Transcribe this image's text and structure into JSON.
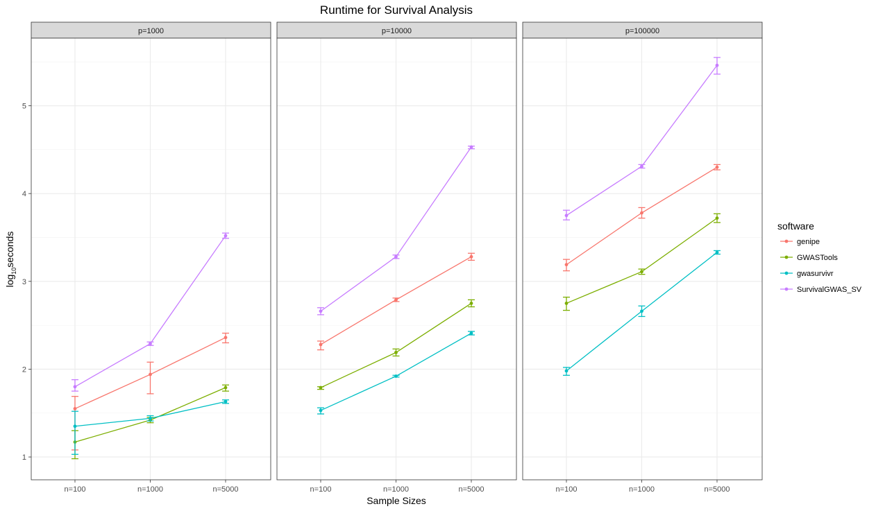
{
  "chart_data": {
    "type": "line",
    "title": "Runtime for Survival Analysis",
    "xlabel": "Sample Sizes",
    "ylabel_base": "log",
    "ylabel_sub": "10",
    "ylabel_rest": "seconds",
    "ylim": [
      0.74,
      5.77
    ],
    "yticks": [
      1,
      2,
      3,
      4,
      5
    ],
    "categories": [
      "n=100",
      "n=1000",
      "n=5000"
    ],
    "grid": true,
    "error_bars": true,
    "legend_position": "right",
    "legend_title": "software",
    "software": [
      {
        "name": "genipe",
        "color": "#F8766D"
      },
      {
        "name": "GWASTools",
        "color": "#7CAE00"
      },
      {
        "name": "gwasurvivr",
        "color": "#00BFC4"
      },
      {
        "name": "SurvivalGWAS_SV",
        "color": "#C77CFF"
      }
    ],
    "panels": [
      {
        "label": "p=1000",
        "series": [
          {
            "name": "genipe",
            "values": [
              1.55,
              1.94,
              2.36
            ],
            "lower": [
              1.08,
              1.72,
              2.3
            ],
            "upper": [
              1.69,
              2.08,
              2.41
            ]
          },
          {
            "name": "GWASTools",
            "values": [
              1.17,
              1.42,
              1.79
            ],
            "lower": [
              0.98,
              1.39,
              1.75
            ],
            "upper": [
              1.3,
              1.45,
              1.82
            ]
          },
          {
            "name": "gwasurvivr",
            "values": [
              1.35,
              1.44,
              1.63
            ],
            "lower": [
              1.03,
              1.41,
              1.61
            ],
            "upper": [
              1.52,
              1.47,
              1.65
            ]
          },
          {
            "name": "SurvivalGWAS_SV",
            "values": [
              1.8,
              2.29,
              3.52
            ],
            "lower": [
              1.75,
              2.27,
              3.49
            ],
            "upper": [
              1.88,
              2.31,
              3.55
            ]
          }
        ]
      },
      {
        "label": "p=10000",
        "series": [
          {
            "name": "genipe",
            "values": [
              2.28,
              2.79,
              3.28
            ],
            "lower": [
              2.22,
              2.77,
              3.24
            ],
            "upper": [
              2.32,
              2.81,
              3.32
            ]
          },
          {
            "name": "GWASTools",
            "values": [
              1.79,
              2.19,
              2.75
            ],
            "lower": [
              1.77,
              2.15,
              2.71
            ],
            "upper": [
              1.8,
              2.23,
              2.79
            ]
          },
          {
            "name": "gwasurvivr",
            "values": [
              1.53,
              1.92,
              2.41
            ],
            "lower": [
              1.49,
              1.91,
              2.39
            ],
            "upper": [
              1.56,
              1.93,
              2.43
            ]
          },
          {
            "name": "SurvivalGWAS_SV",
            "values": [
              2.66,
              3.28,
              4.53
            ],
            "lower": [
              2.62,
              3.26,
              4.51
            ],
            "upper": [
              2.7,
              3.3,
              4.54
            ]
          }
        ]
      },
      {
        "label": "p=100000",
        "series": [
          {
            "name": "genipe",
            "values": [
              3.19,
              3.78,
              4.3
            ],
            "lower": [
              3.12,
              3.72,
              4.27
            ],
            "upper": [
              3.25,
              3.84,
              4.33
            ]
          },
          {
            "name": "GWASTools",
            "values": [
              2.75,
              3.11,
              3.72
            ],
            "lower": [
              2.67,
              3.08,
              3.67
            ],
            "upper": [
              2.82,
              3.14,
              3.77
            ]
          },
          {
            "name": "gwasurvivr",
            "values": [
              1.98,
              2.66,
              3.33
            ],
            "lower": [
              1.93,
              2.6,
              3.31
            ],
            "upper": [
              2.02,
              2.72,
              3.35
            ]
          },
          {
            "name": "SurvivalGWAS_SV",
            "values": [
              3.75,
              4.31,
              5.46
            ],
            "lower": [
              3.7,
              4.29,
              5.36
            ],
            "upper": [
              3.81,
              4.33,
              5.55
            ]
          }
        ]
      }
    ]
  }
}
